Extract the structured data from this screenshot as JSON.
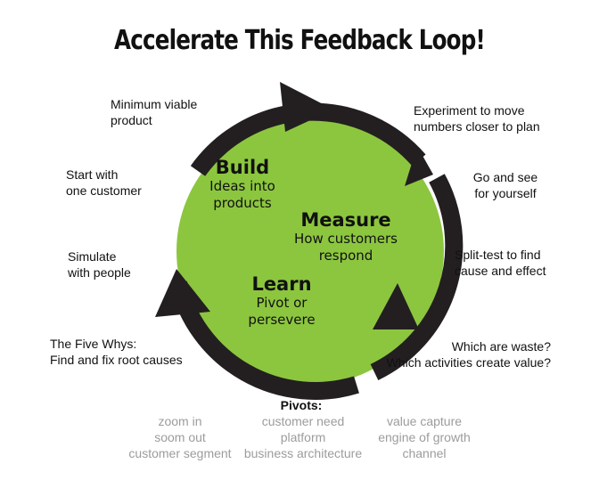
{
  "title": "Accelerate This Feedback Loop!",
  "colors": {
    "circle_fill": "#8cc63f",
    "arrow": "#231f20",
    "pivot_options": "#9c9c9c"
  },
  "stages": {
    "build": {
      "title": "Build",
      "line1": "Ideas into",
      "line2": "products"
    },
    "measure": {
      "title": "Measure",
      "line1": "How customers",
      "line2": "respond"
    },
    "learn": {
      "title": "Learn",
      "line1": "Pivot or",
      "line2": "persevere"
    }
  },
  "left_notes": {
    "mvp": {
      "line1": "Minimum viable",
      "line2": "product"
    },
    "one_customer": {
      "line1": "Start with",
      "line2": "one customer"
    },
    "simulate": {
      "line1": "Simulate",
      "line2": "with people"
    },
    "five_whys": {
      "line1": "The Five Whys:",
      "line2": "Find and fix root causes"
    }
  },
  "right_notes": {
    "experiment": {
      "line1": "Experiment to move",
      "line2": "numbers closer to plan"
    },
    "go_see": {
      "line1": "Go and see",
      "line2": "for yourself"
    },
    "split_test": {
      "line1": "Split-test to find",
      "line2": "cause and effect"
    },
    "waste": {
      "line1": "Which are waste?",
      "line2": "Which activities create value?"
    }
  },
  "pivots": {
    "heading": "Pivots:",
    "col1": [
      "zoom in",
      "soom out",
      "customer segment"
    ],
    "col2": [
      "customer need",
      "platform",
      "business architecture"
    ],
    "col3": [
      "value capture",
      "engine of growth",
      "channel"
    ]
  }
}
